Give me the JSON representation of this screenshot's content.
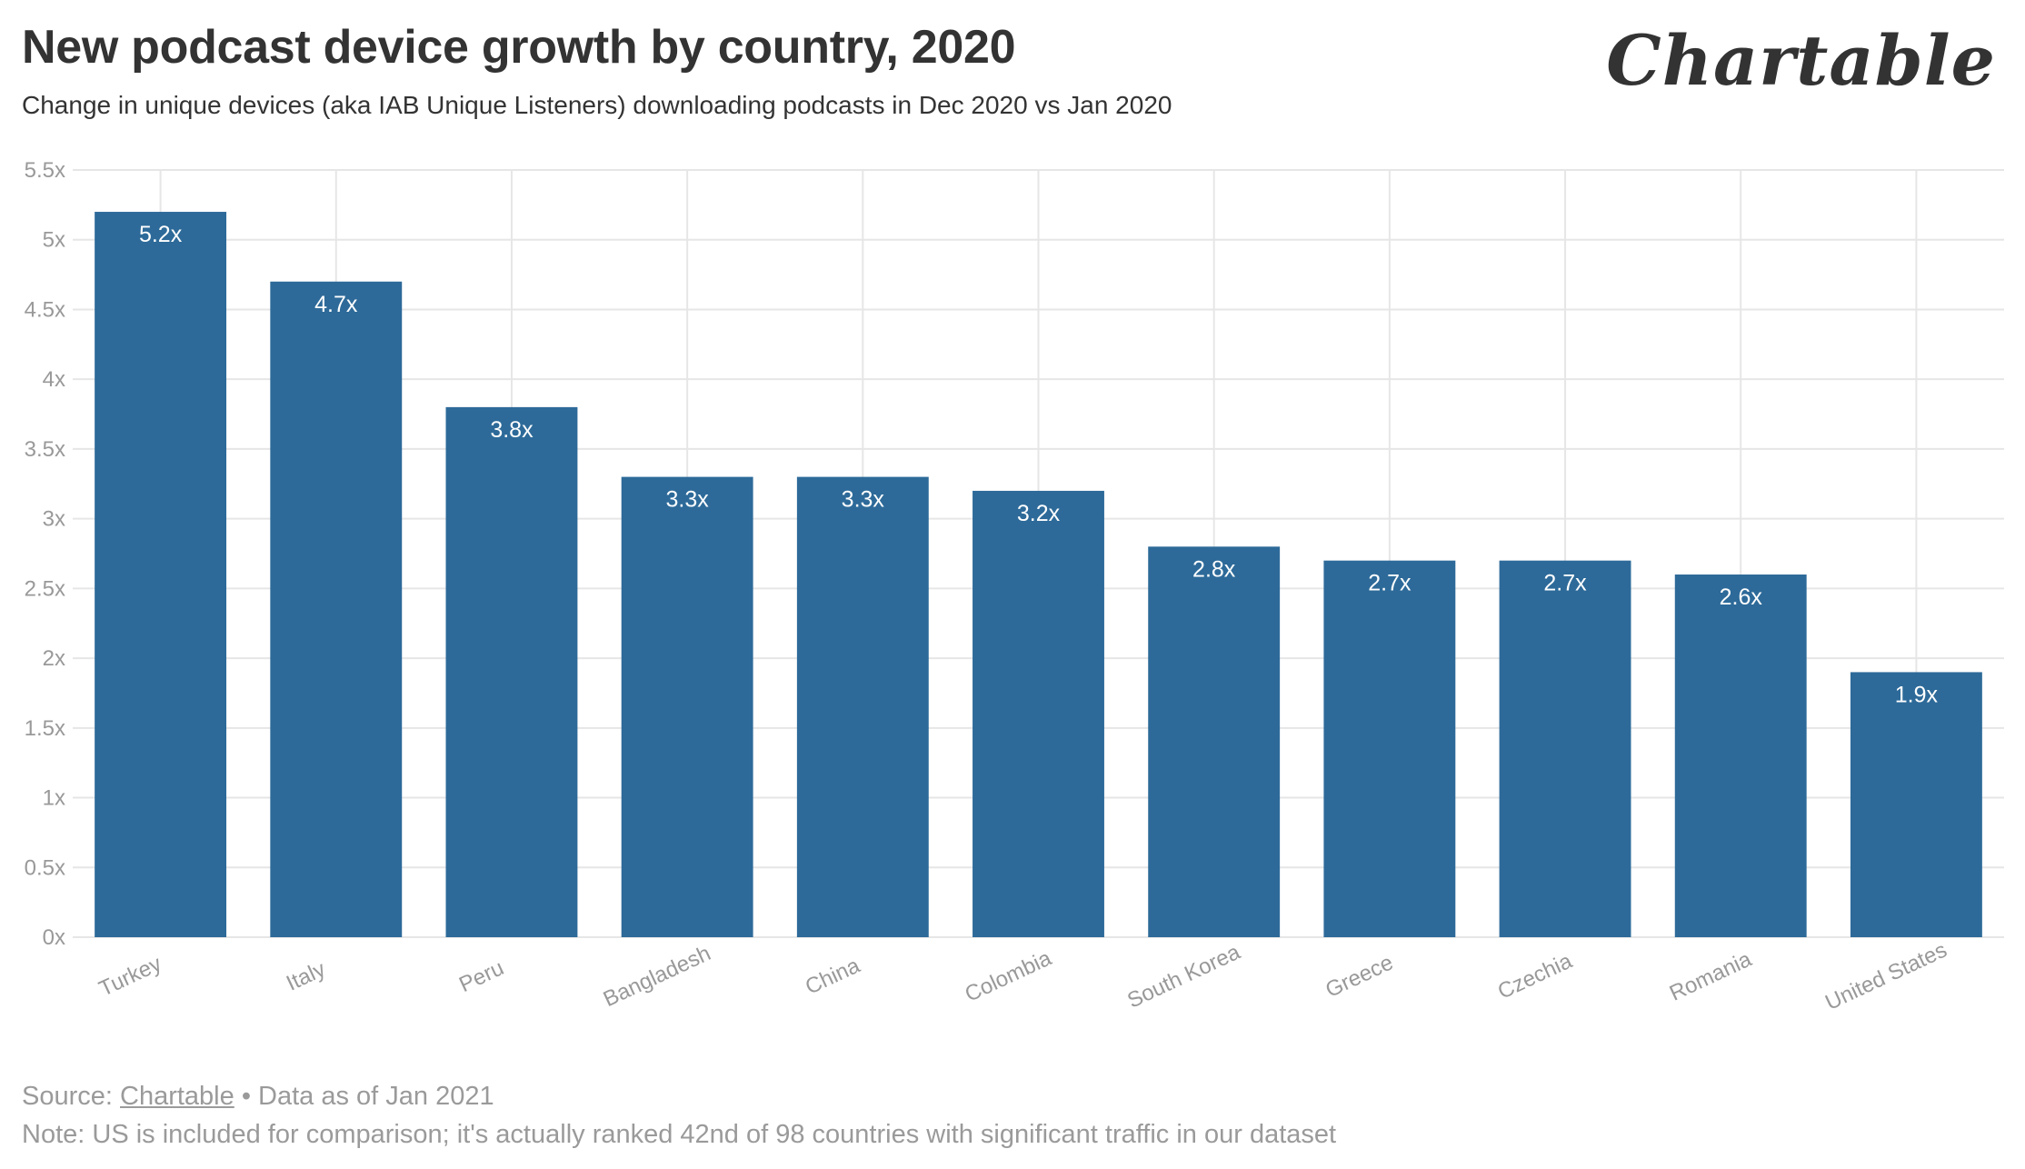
{
  "title": "New podcast device growth by country, 2020",
  "subtitle": "Change in unique devices (aka IAB Unique Listeners) downloading podcasts in Dec 2020 vs Jan 2020",
  "brand": "Chartable",
  "footer": {
    "source_prefix": "Source:",
    "source_link": "Chartable",
    "source_suffix": "• Data as of Jan 2021",
    "note": "Note: US is included for comparison; it's actually ranked 42nd of 98 countries with significant traffic in our dataset"
  },
  "colors": {
    "bar": "#2d6a99",
    "grid": "#e6e6e6",
    "axis_text": "#999999"
  },
  "chart_data": {
    "type": "bar",
    "title": "New podcast device growth by country, 2020",
    "xlabel": "",
    "ylabel": "",
    "ylim": [
      0,
      5.5
    ],
    "yticks": [
      0,
      0.5,
      1,
      1.5,
      2,
      2.5,
      3,
      3.5,
      4,
      4.5,
      5,
      5.5
    ],
    "ytick_labels": [
      "0x",
      "0.5x",
      "1x",
      "1.5x",
      "2x",
      "2.5x",
      "3x",
      "3.5x",
      "4x",
      "4.5x",
      "5x",
      "5.5x"
    ],
    "grid": true,
    "categories": [
      "Turkey",
      "Italy",
      "Peru",
      "Bangladesh",
      "China",
      "Colombia",
      "South Korea",
      "Greece",
      "Czechia",
      "Romania",
      "United States"
    ],
    "values": [
      5.2,
      4.7,
      3.8,
      3.3,
      3.3,
      3.2,
      2.8,
      2.7,
      2.7,
      2.6,
      1.9
    ],
    "value_labels": [
      "5.2x",
      "4.7x",
      "3.8x",
      "3.3x",
      "3.3x",
      "3.2x",
      "2.8x",
      "2.7x",
      "2.7x",
      "2.6x",
      "1.9x"
    ]
  }
}
